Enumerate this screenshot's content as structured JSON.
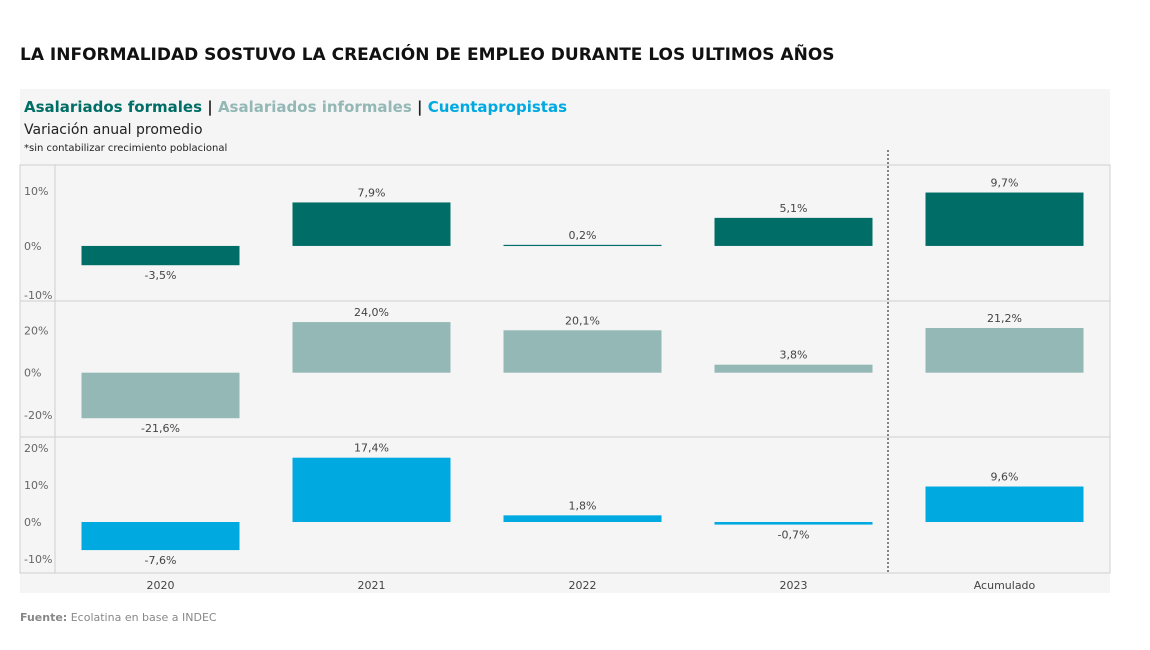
{
  "title": "LA INFORMALIDAD SOSTUVO LA CREACIÓN DE EMPLEO DURANTE LOS ULTIMOS AÑOS",
  "legend": {
    "items": [
      {
        "label": "Asalariados formales",
        "color": "#006e66"
      },
      {
        "label": "Asalariados informales",
        "color": "#93b8b5"
      },
      {
        "label": "Cuentapropistas",
        "color": "#00a9e0"
      }
    ],
    "separator": "|"
  },
  "subtitle": "Variación anual promedio",
  "note": "*sin contabilizar crecimiento poblacional",
  "source": {
    "label": "Fuente:",
    "text": "Ecolatina en base a INDEC"
  },
  "chart_data": {
    "type": "bar",
    "categories": [
      "2020",
      "2021",
      "2022",
      "2023",
      "Acumulado"
    ],
    "panels": [
      {
        "name": "Asalariados formales",
        "color": "#006e66",
        "values": [
          -3.5,
          7.9,
          0.2,
          5.1,
          9.7
        ],
        "labels": [
          "-3,5%",
          "7,9%",
          "0,2%",
          "5,1%",
          "9,7%"
        ],
        "ticks": [
          -10,
          0,
          10
        ],
        "tick_labels": [
          "-10%",
          "0%",
          "10%"
        ],
        "ylim": [
          -10,
          14.7
        ]
      },
      {
        "name": "Asalariados informales",
        "color": "#93b8b5",
        "values": [
          -21.6,
          24.0,
          20.1,
          3.8,
          21.2
        ],
        "labels": [
          "-21,6%",
          "24,0%",
          "20,1%",
          "3,8%",
          "21,2%"
        ],
        "ticks": [
          -20,
          0,
          20
        ],
        "tick_labels": [
          "-20%",
          "0%",
          "20%"
        ],
        "ylim": [
          -30.5,
          34
        ]
      },
      {
        "name": "Cuentapropistas",
        "color": "#00a9e0",
        "values": [
          -7.6,
          17.4,
          1.8,
          -0.7,
          9.6
        ],
        "labels": [
          "-7,6%",
          "17,4%",
          "1,8%",
          "-0,7%",
          "9,6%"
        ],
        "ticks": [
          -10,
          0,
          10,
          20
        ],
        "tick_labels": [
          "-10%",
          "0%",
          "10%",
          "20%"
        ],
        "ylim": [
          -13.8,
          23
        ]
      }
    ],
    "separator_before": "Acumulado",
    "grid": false
  }
}
